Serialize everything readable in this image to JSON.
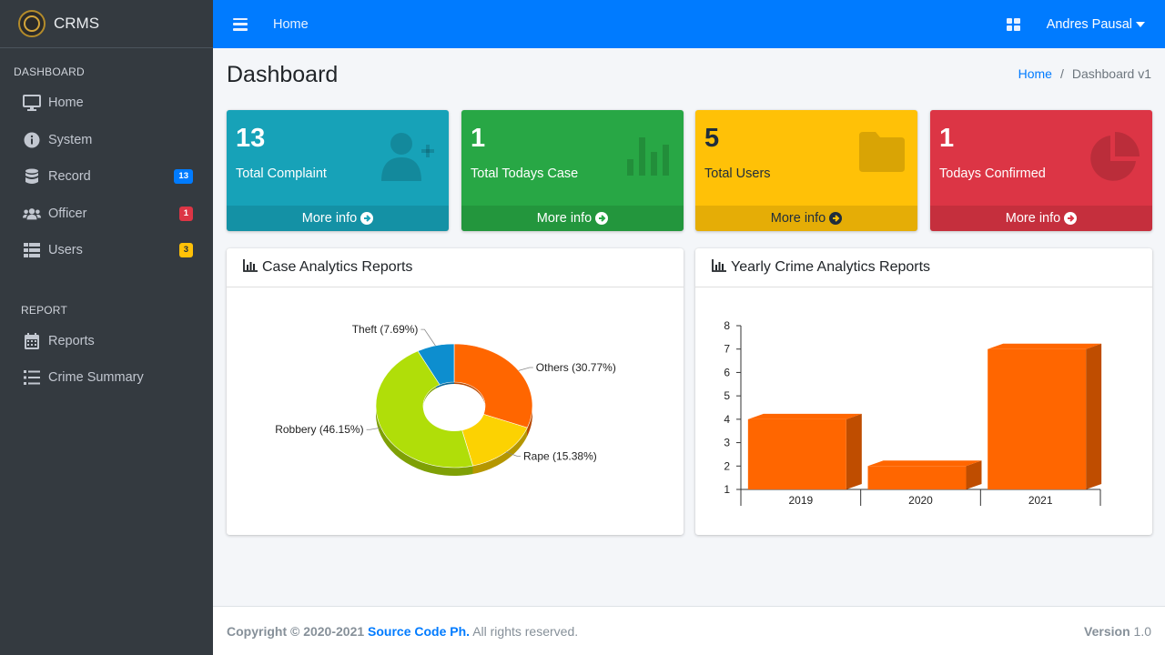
{
  "brand": {
    "name": "CRMS"
  },
  "topbar": {
    "home": "Home",
    "user": "Andres Pausal"
  },
  "sidebar": {
    "header_dashboard": "DASHBOARD",
    "header_report": "REPORT",
    "items": [
      {
        "label": "Home",
        "icon": "desktop-icon"
      },
      {
        "label": "System",
        "icon": "info-circle-icon"
      },
      {
        "label": "Record",
        "icon": "database-icon",
        "badge": "13"
      },
      {
        "label": "Officer",
        "icon": "users-icon",
        "badge": "1"
      },
      {
        "label": "Users",
        "icon": "table-icon",
        "badge": "3"
      }
    ],
    "report_items": [
      {
        "label": "Reports",
        "icon": "calendar-icon"
      },
      {
        "label": "Crime Summary",
        "icon": "list-icon"
      }
    ]
  },
  "page": {
    "title": "Dashboard"
  },
  "breadcrumb": {
    "home": "Home",
    "separator": "/",
    "current": "Dashboard v1"
  },
  "stats": [
    {
      "value": "13",
      "label": "Total Complaint",
      "more": "More info",
      "color": "#17a2b8",
      "icon": "user-plus-icon"
    },
    {
      "value": "1",
      "label": "Total Todays Case",
      "more": "More info",
      "color": "#28a745",
      "icon": "bar-chart-icon"
    },
    {
      "value": "5",
      "label": "Total Users",
      "more": "More info",
      "color": "#ffc107",
      "icon": "folder-icon"
    },
    {
      "value": "1",
      "label": "Todays Confirmed",
      "more": "More info",
      "color": "#dc3545",
      "icon": "pie-chart-icon"
    }
  ],
  "cards": {
    "left_title": "Case Analytics Reports",
    "right_title": "Yearly Crime Analytics Reports"
  },
  "chart_data": [
    {
      "type": "pie",
      "title": "Case Analytics Reports",
      "slices": [
        {
          "label": "Others (30.77%)",
          "value": 30.77,
          "color": "#ff6600"
        },
        {
          "label": "Rape (15.38%)",
          "value": 15.38,
          "color": "#fcd202"
        },
        {
          "label": "Robbery (46.15%)",
          "value": 46.15,
          "color": "#b0de09"
        },
        {
          "label": "Theft (7.69%)",
          "value": 7.69,
          "color": "#0d8ecf"
        }
      ]
    },
    {
      "type": "bar",
      "title": "Yearly Crime Analytics Reports",
      "categories": [
        "2019",
        "2020",
        "2021"
      ],
      "values": [
        4,
        2,
        7
      ],
      "ylim": [
        1,
        8
      ],
      "yticks": [
        "1",
        "2",
        "3",
        "4",
        "5",
        "6",
        "7",
        "8"
      ],
      "color": "#ff6600"
    }
  ],
  "footer": {
    "copyright": "Copyright © 2020-2021 ",
    "brand": "Source Code Ph.",
    "rights": " All rights reserved.",
    "version_label": "Version",
    "version": "1.0"
  }
}
